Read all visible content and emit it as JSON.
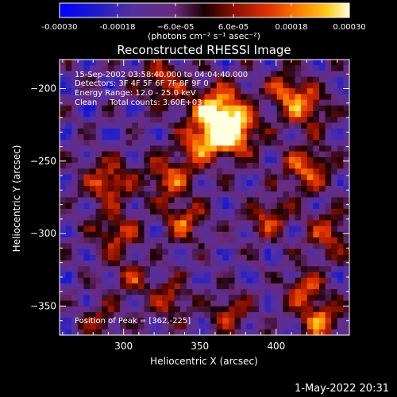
{
  "chart_data": {
    "type": "heatmap",
    "title": "Reconstructed RHESSI Image",
    "xlabel": "Heliocentric X (arcsec)",
    "ylabel": "Heliocentric Y (arcsec)",
    "xlim": [
      258,
      448
    ],
    "ylim": [
      -370,
      -180
    ],
    "x_ticks": [
      300,
      350,
      400
    ],
    "y_ticks": [
      -200,
      -250,
      -300,
      -350
    ],
    "colorbar": {
      "ticks": [
        "-0.00030",
        "-0.00018",
        "−6.0e-05",
        "6.0e-05",
        "0.00018",
        "0.00030"
      ],
      "range": [
        -0.0003,
        0.0003
      ],
      "unit_label": "(photons cm⁻² s⁻¹ asec⁻²)"
    },
    "annotations": [
      "15-Sep-2002 03:58:40.000 to 04:04:40.000",
      "Detectors: 3F 4F 5F 6F 7F 8F 9F 0",
      "Energy Range: 12.0 - 25.0 keV",
      "Clean     Total counts: 3.60E+03"
    ],
    "peak_label": "Position of Peak = [362,-225]",
    "peak": [
      362,
      -225
    ],
    "sources": [
      {
        "x": 362,
        "y": -218,
        "amp": 1.0,
        "w": 13
      },
      {
        "x": 372,
        "y": -232,
        "amp": 0.75,
        "w": 10
      },
      {
        "x": 350,
        "y": -240,
        "amp": 0.55,
        "w": 9
      },
      {
        "x": 325,
        "y": -195,
        "amp": 0.55,
        "w": 9
      },
      {
        "x": 418,
        "y": -212,
        "amp": 0.65,
        "w": 10
      },
      {
        "x": 405,
        "y": -200,
        "amp": 0.45,
        "w": 8
      },
      {
        "x": 290,
        "y": -265,
        "amp": 0.6,
        "w": 11
      },
      {
        "x": 330,
        "y": -262,
        "amp": 0.6,
        "w": 10
      },
      {
        "x": 295,
        "y": -300,
        "amp": 0.5,
        "w": 10
      },
      {
        "x": 340,
        "y": -292,
        "amp": 0.55,
        "w": 9
      },
      {
        "x": 420,
        "y": -255,
        "amp": 0.6,
        "w": 11
      },
      {
        "x": 435,
        "y": -300,
        "amp": 0.5,
        "w": 10
      },
      {
        "x": 395,
        "y": -290,
        "amp": 0.5,
        "w": 9
      },
      {
        "x": 420,
        "y": -340,
        "amp": 0.5,
        "w": 10
      },
      {
        "x": 430,
        "y": -362,
        "amp": 0.6,
        "w": 9
      },
      {
        "x": 330,
        "y": -345,
        "amp": 0.45,
        "w": 9
      },
      {
        "x": 285,
        "y": -360,
        "amp": 0.35,
        "w": 9
      },
      {
        "x": 370,
        "y": -355,
        "amp": 0.45,
        "w": 9
      },
      {
        "x": 305,
        "y": -330,
        "amp": 0.4,
        "w": 8
      }
    ]
  },
  "footer_date": "1-May-2022 20:31"
}
